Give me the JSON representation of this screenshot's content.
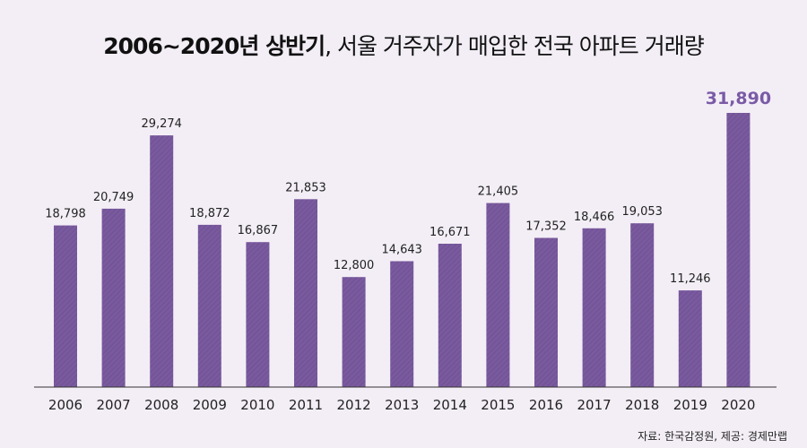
{
  "title": {
    "bold": "2006~2020년 상반기",
    "rest": ", 서울 거주자가 매입한 전국 아파트 거래량"
  },
  "source": "자료: 한국감정원, 제공: 경제만랩",
  "colors": {
    "background": "#f3eef6",
    "bar": "#7a5a9e",
    "highlight_label": "#7a5aa6",
    "text": "#222222"
  },
  "chart_data": {
    "type": "bar",
    "categories": [
      "2006",
      "2007",
      "2008",
      "2009",
      "2010",
      "2011",
      "2012",
      "2013",
      "2014",
      "2015",
      "2016",
      "2017",
      "2018",
      "2019",
      "2020"
    ],
    "values": [
      18798,
      20749,
      29274,
      18872,
      16867,
      21853,
      12800,
      14643,
      16671,
      21405,
      17352,
      18466,
      19053,
      11246,
      31890
    ],
    "value_labels": [
      "18,798",
      "20,749",
      "29,274",
      "18,872",
      "16,867",
      "21,853",
      "12,800",
      "14,643",
      "16,671",
      "21,405",
      "17,352",
      "18,466",
      "19,053",
      "11,246",
      "31,890"
    ],
    "highlight_index": 14,
    "ylim": [
      0,
      31890
    ],
    "grid": false,
    "legend": "none"
  }
}
